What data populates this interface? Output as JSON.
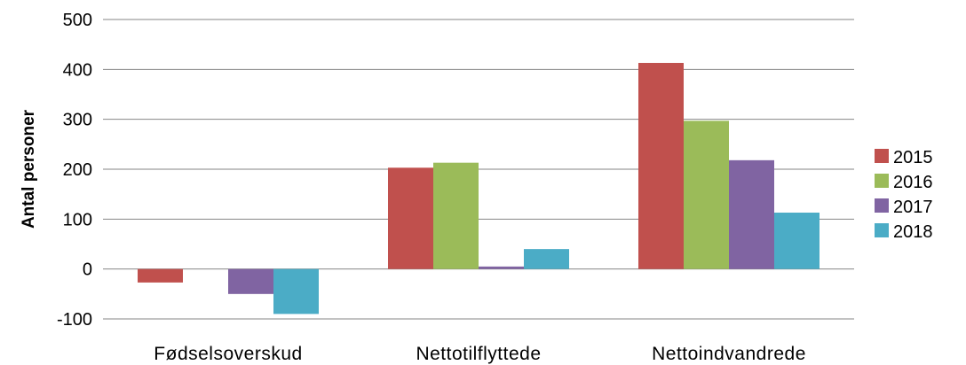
{
  "chart_data": {
    "type": "bar",
    "title": "",
    "xlabel": "",
    "ylabel": "Antal personer",
    "categories": [
      "Fødselsoverskud",
      "Nettotilflyttede",
      "Nettoindvandrede"
    ],
    "series": [
      {
        "name": "2015",
        "color": "#c0504d",
        "values": [
          -27,
          203,
          413
        ]
      },
      {
        "name": "2016",
        "color": "#9bbb59",
        "values": [
          0,
          213,
          297
        ]
      },
      {
        "name": "2017",
        "color": "#8064a2",
        "values": [
          -50,
          5,
          218
        ]
      },
      {
        "name": "2018",
        "color": "#4bacc6",
        "values": [
          -90,
          40,
          113
        ]
      }
    ],
    "ylim": [
      -100,
      500
    ],
    "yticks": [
      "-100",
      "0",
      "100",
      "200",
      "300",
      "400",
      "500"
    ],
    "grid": true,
    "legend_position": "right"
  }
}
